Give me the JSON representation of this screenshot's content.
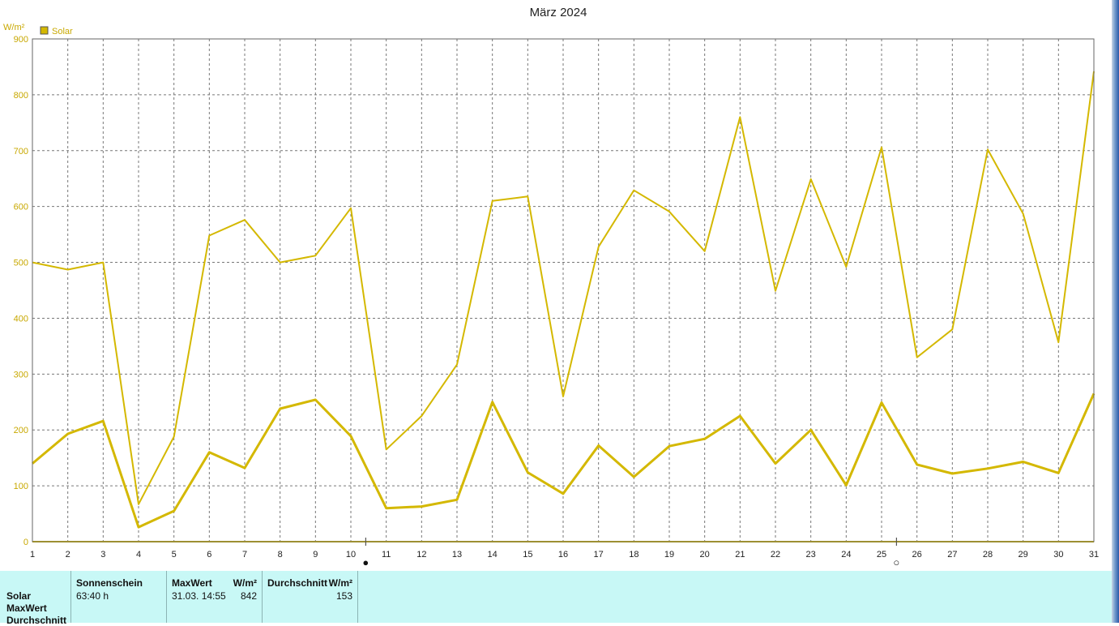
{
  "chart_data": {
    "type": "line",
    "title": "März 2024",
    "unit_label": "W/m²",
    "ylim": [
      0,
      900
    ],
    "yticks": [
      0,
      100,
      200,
      300,
      400,
      500,
      600,
      700,
      800,
      900
    ],
    "categories": [
      "1",
      "2",
      "3",
      "4",
      "5",
      "6",
      "7",
      "8",
      "9",
      "10",
      "11",
      "12",
      "13",
      "14",
      "15",
      "16",
      "17",
      "18",
      "19",
      "20",
      "21",
      "22",
      "23",
      "24",
      "25",
      "26",
      "27",
      "28",
      "29",
      "30",
      "31"
    ],
    "legend": {
      "label": "Solar",
      "placement": "top-left",
      "color": "#d4b800"
    },
    "grid": true,
    "series": [
      {
        "role": "max",
        "color": "#d4b800",
        "values": [
          500,
          487,
          500,
          67,
          188,
          548,
          576,
          500,
          512,
          597,
          165,
          225,
          317,
          610,
          618,
          260,
          528,
          629,
          591,
          520,
          760,
          449,
          649,
          492,
          706,
          330,
          380,
          702,
          587,
          357,
          842
        ]
      },
      {
        "role": "avg",
        "color": "#d4b800",
        "values": [
          140,
          193,
          216,
          26,
          55,
          160,
          132,
          238,
          254,
          189,
          60,
          63,
          75,
          250,
          124,
          86,
          172,
          116,
          171,
          184,
          225,
          140,
          200,
          101,
          249,
          138,
          122,
          131,
          143,
          123,
          265
        ]
      }
    ],
    "moon_markers": [
      {
        "after_day": "10",
        "symbol": "●"
      },
      {
        "after_day": "25",
        "symbol": "○"
      }
    ]
  },
  "stats": {
    "row_labels": [
      "Solar",
      "MaxWert",
      "Durchschnitt"
    ],
    "columns": [
      {
        "header": "Sonnenschein",
        "unit": "",
        "value": "63:40 h"
      },
      {
        "header": "MaxWert",
        "unit": "W/m²",
        "value": "31.03.  14:55",
        "value2": "842"
      },
      {
        "header": "Durchschnitt",
        "unit": "W/m²",
        "value": "153"
      }
    ]
  }
}
